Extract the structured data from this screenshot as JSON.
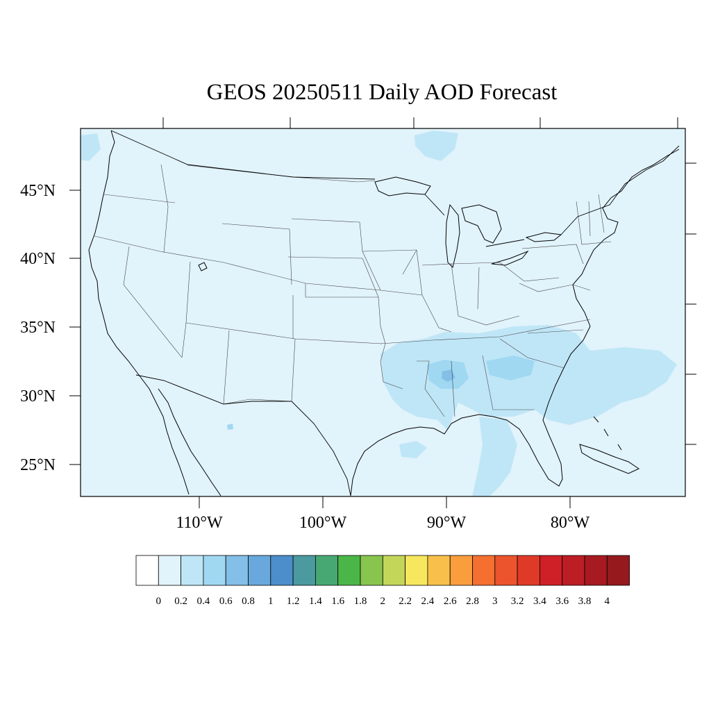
{
  "title": "GEOS 20250511 Daily AOD Forecast",
  "latitude_labels": [
    "45°N",
    "40°N",
    "35°N",
    "30°N",
    "25°N"
  ],
  "longitude_labels": [
    "110°W",
    "100°W",
    "90°W",
    "80°W"
  ],
  "colorbar": {
    "labels": [
      "0",
      "0.2",
      "0.4",
      "0.6",
      "0.8",
      "1",
      "1.2",
      "1.4",
      "1.6",
      "1.8",
      "2",
      "2.2",
      "2.4",
      "2.6",
      "2.8",
      "3",
      "3.2",
      "3.4",
      "3.6",
      "3.8",
      "4"
    ],
    "colors": [
      "#ffffff",
      "#e1f3fb",
      "#bfe6f7",
      "#a0d8f2",
      "#83bfe6",
      "#68a8dc",
      "#4b8ecb",
      "#4a9aa0",
      "#48a874",
      "#4bb648",
      "#88c54f",
      "#c3d65a",
      "#f7e75e",
      "#f8c04a",
      "#f99d3d",
      "#f46f30",
      "#eb542c",
      "#df3a28",
      "#cf2027",
      "#bd1d24",
      "#a81a21",
      "#941a1d"
    ]
  },
  "chart_data": {
    "type": "heatmap",
    "title": "GEOS 20250511 Daily AOD Forecast",
    "variable": "Daily AOD",
    "date": "20250511",
    "lon_ticks": [
      "110°W",
      "100°W",
      "90°W",
      "80°W"
    ],
    "lat_ticks": [
      "45°N",
      "40°N",
      "35°N",
      "30°N",
      "25°N"
    ],
    "colorbar_range": [
      0,
      4
    ],
    "colorbar_step": 0.2,
    "background_level": "0.2-0.4 (light blue) over most of the domain",
    "elevated_regions": [
      {
        "area": "Mississippi / Alabama / Georgia / Carolinas",
        "level": "0.4-0.8"
      },
      {
        "area": "Atlantic off the Southeast coast",
        "level": "0.4-0.6"
      },
      {
        "area": "Central Gulf of Mexico",
        "level": "0.4-0.6"
      }
    ]
  }
}
